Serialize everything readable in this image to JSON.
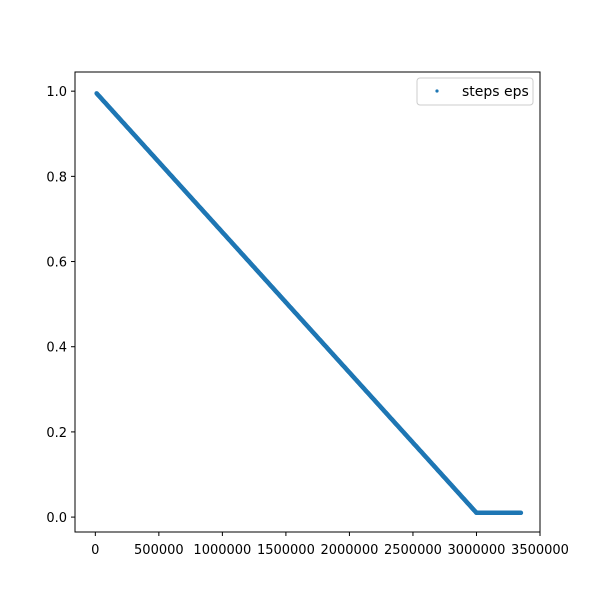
{
  "chart_data": {
    "type": "scatter",
    "title": "",
    "xlabel": "",
    "ylabel": "",
    "xlim": [
      -160000,
      3500000
    ],
    "ylim": [
      -0.035,
      1.045
    ],
    "x_ticks": [
      0,
      500000,
      1000000,
      1500000,
      2000000,
      2500000,
      3000000,
      3500000
    ],
    "x_tick_labels": [
      "0",
      "500000",
      "1000000",
      "1500000",
      "2000000",
      "2500000",
      "3000000",
      "3500000"
    ],
    "y_ticks": [
      0.0,
      0.2,
      0.4,
      0.6,
      0.8,
      1.0
    ],
    "y_tick_labels": [
      "0.0",
      "0.2",
      "0.4",
      "0.6",
      "0.8",
      "1.0"
    ],
    "grid": false,
    "legend_position": "top-right",
    "series": [
      {
        "name": "steps eps",
        "color": "#1f77b4",
        "segments": [
          {
            "x": [
              10000,
              3000000
            ],
            "y": [
              0.995,
              0.01
            ]
          },
          {
            "x": [
              3000000,
              3350000
            ],
            "y": [
              0.01,
              0.01
            ]
          }
        ]
      }
    ]
  }
}
